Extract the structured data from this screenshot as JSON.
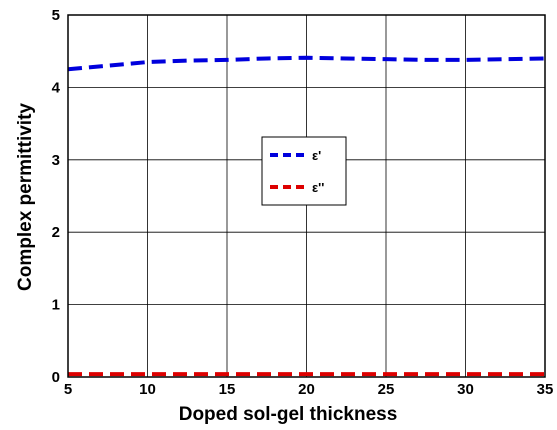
{
  "chart_data": {
    "type": "line",
    "xlabel": "Doped sol-gel thickness",
    "ylabel": "Complex permittivity",
    "xlim": [
      5,
      35
    ],
    "ylim": [
      0,
      5
    ],
    "xticks": [
      "5",
      "10",
      "15",
      "20",
      "25",
      "30",
      "35"
    ],
    "yticks": [
      "0",
      "1",
      "2",
      "3",
      "4",
      "5"
    ],
    "grid": true,
    "legend_position": "center",
    "series": [
      {
        "name": "ε'",
        "color": "#0000dd",
        "line_style": "dashed",
        "x": [
          5,
          7.5,
          10,
          12.5,
          15,
          17.5,
          20,
          22.5,
          25,
          27.5,
          30,
          32.5,
          35
        ],
        "y": [
          4.25,
          4.3,
          4.35,
          4.37,
          4.38,
          4.4,
          4.41,
          4.4,
          4.39,
          4.38,
          4.38,
          4.39,
          4.4
        ]
      },
      {
        "name": "ε''",
        "color": "#dd0000",
        "line_style": "dashed",
        "x": [
          5,
          10,
          15,
          20,
          25,
          30,
          35
        ],
        "y": [
          0.04,
          0.04,
          0.04,
          0.04,
          0.04,
          0.04,
          0.04
        ]
      }
    ]
  }
}
